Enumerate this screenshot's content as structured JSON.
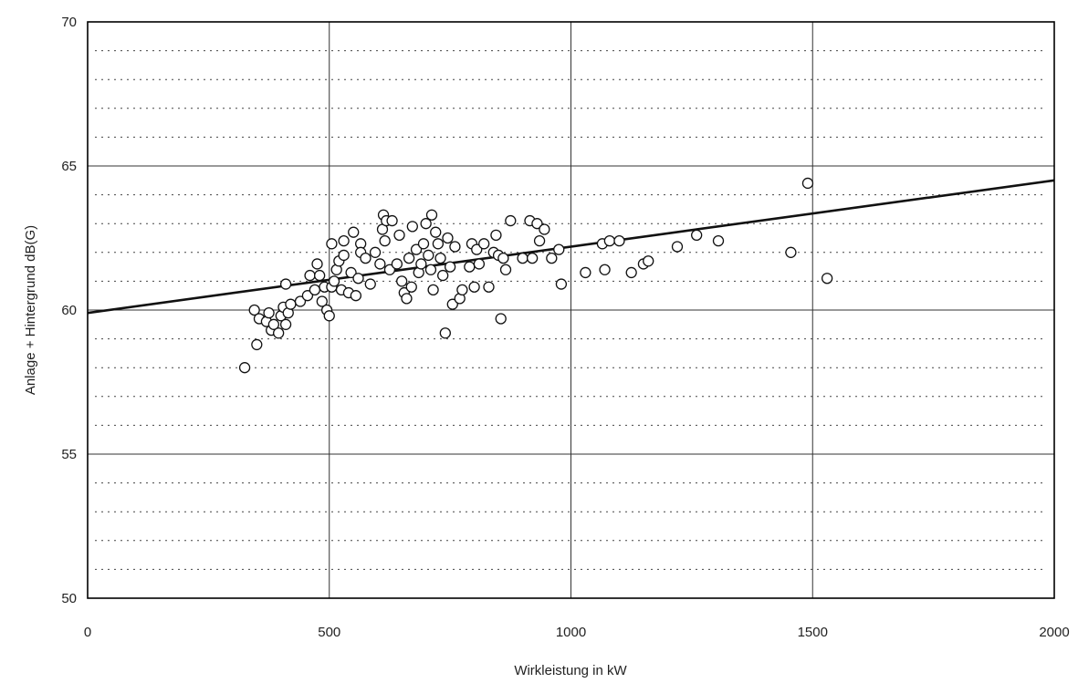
{
  "chart_data": {
    "type": "scatter",
    "title": "",
    "xlabel": "Wirkleistung in kW",
    "ylabel": "Anlage + Hintergrund dB(G)",
    "xlim": [
      0,
      2000
    ],
    "ylim": [
      50,
      70
    ],
    "x_ticks": [
      "0",
      "500",
      "1000",
      "1500",
      "2000"
    ],
    "y_ticks": [
      "50",
      "55",
      "60",
      "65",
      "70"
    ],
    "x_tick_values": [
      0,
      500,
      1000,
      1500,
      2000
    ],
    "y_tick_values": [
      50,
      55,
      60,
      65,
      70
    ],
    "grid": "major solid, minor dotted every 1 dB(G)",
    "legend": "none",
    "marker": "open-circle",
    "trend_line": {
      "x": [
        0,
        2000
      ],
      "y": [
        59.9,
        64.5
      ]
    },
    "colors": {
      "axis": "#000000",
      "grid": "#444444",
      "marker": "#111111",
      "trend": "#111111"
    },
    "points": [
      [
        325,
        58.0
      ],
      [
        345,
        60.0
      ],
      [
        350,
        58.8
      ],
      [
        355,
        59.7
      ],
      [
        370,
        59.6
      ],
      [
        375,
        59.9
      ],
      [
        380,
        59.3
      ],
      [
        385,
        59.5
      ],
      [
        395,
        59.2
      ],
      [
        400,
        59.8
      ],
      [
        405,
        60.1
      ],
      [
        410,
        59.5
      ],
      [
        410,
        60.9
      ],
      [
        415,
        59.9
      ],
      [
        420,
        60.2
      ],
      [
        440,
        60.3
      ],
      [
        455,
        60.5
      ],
      [
        460,
        61.2
      ],
      [
        470,
        60.7
      ],
      [
        475,
        61.6
      ],
      [
        480,
        61.2
      ],
      [
        485,
        60.3
      ],
      [
        490,
        60.8
      ],
      [
        495,
        60.0
      ],
      [
        500,
        59.8
      ],
      [
        505,
        60.8
      ],
      [
        505,
        62.3
      ],
      [
        510,
        61.0
      ],
      [
        515,
        61.4
      ],
      [
        520,
        61.7
      ],
      [
        525,
        60.7
      ],
      [
        530,
        61.9
      ],
      [
        530,
        62.4
      ],
      [
        540,
        60.6
      ],
      [
        545,
        61.3
      ],
      [
        550,
        62.7
      ],
      [
        555,
        60.5
      ],
      [
        560,
        61.1
      ],
      [
        565,
        62.3
      ],
      [
        565,
        62.0
      ],
      [
        575,
        61.8
      ],
      [
        585,
        60.9
      ],
      [
        595,
        62.0
      ],
      [
        605,
        61.6
      ],
      [
        610,
        62.8
      ],
      [
        612,
        63.3
      ],
      [
        615,
        62.4
      ],
      [
        618,
        63.1
      ],
      [
        625,
        61.4
      ],
      [
        630,
        63.1
      ],
      [
        640,
        61.6
      ],
      [
        645,
        62.6
      ],
      [
        650,
        61.0
      ],
      [
        655,
        60.6
      ],
      [
        660,
        60.4
      ],
      [
        665,
        61.8
      ],
      [
        670,
        60.8
      ],
      [
        672,
        62.9
      ],
      [
        680,
        62.1
      ],
      [
        685,
        61.3
      ],
      [
        690,
        61.6
      ],
      [
        695,
        62.3
      ],
      [
        700,
        63.0
      ],
      [
        705,
        61.9
      ],
      [
        710,
        61.4
      ],
      [
        712,
        63.3
      ],
      [
        715,
        60.7
      ],
      [
        720,
        62.7
      ],
      [
        725,
        62.3
      ],
      [
        730,
        61.8
      ],
      [
        735,
        61.2
      ],
      [
        740,
        59.2
      ],
      [
        745,
        62.5
      ],
      [
        750,
        61.5
      ],
      [
        755,
        60.2
      ],
      [
        760,
        62.2
      ],
      [
        770,
        60.4
      ],
      [
        775,
        60.7
      ],
      [
        790,
        61.5
      ],
      [
        795,
        62.3
      ],
      [
        800,
        60.8
      ],
      [
        805,
        62.1
      ],
      [
        810,
        61.6
      ],
      [
        820,
        62.3
      ],
      [
        830,
        60.8
      ],
      [
        840,
        62.0
      ],
      [
        845,
        62.6
      ],
      [
        850,
        61.9
      ],
      [
        855,
        59.7
      ],
      [
        860,
        61.8
      ],
      [
        865,
        61.4
      ],
      [
        875,
        63.1
      ],
      [
        900,
        61.8
      ],
      [
        915,
        63.1
      ],
      [
        920,
        61.8
      ],
      [
        930,
        63.0
      ],
      [
        935,
        62.4
      ],
      [
        945,
        62.8
      ],
      [
        960,
        61.8
      ],
      [
        975,
        62.1
      ],
      [
        980,
        60.9
      ],
      [
        1030,
        61.3
      ],
      [
        1065,
        62.3
      ],
      [
        1070,
        61.4
      ],
      [
        1080,
        62.4
      ],
      [
        1100,
        62.4
      ],
      [
        1125,
        61.3
      ],
      [
        1150,
        61.6
      ],
      [
        1160,
        61.7
      ],
      [
        1220,
        62.2
      ],
      [
        1260,
        62.6
      ],
      [
        1305,
        62.4
      ],
      [
        1455,
        62.0
      ],
      [
        1490,
        64.4
      ],
      [
        1530,
        61.1
      ]
    ]
  }
}
